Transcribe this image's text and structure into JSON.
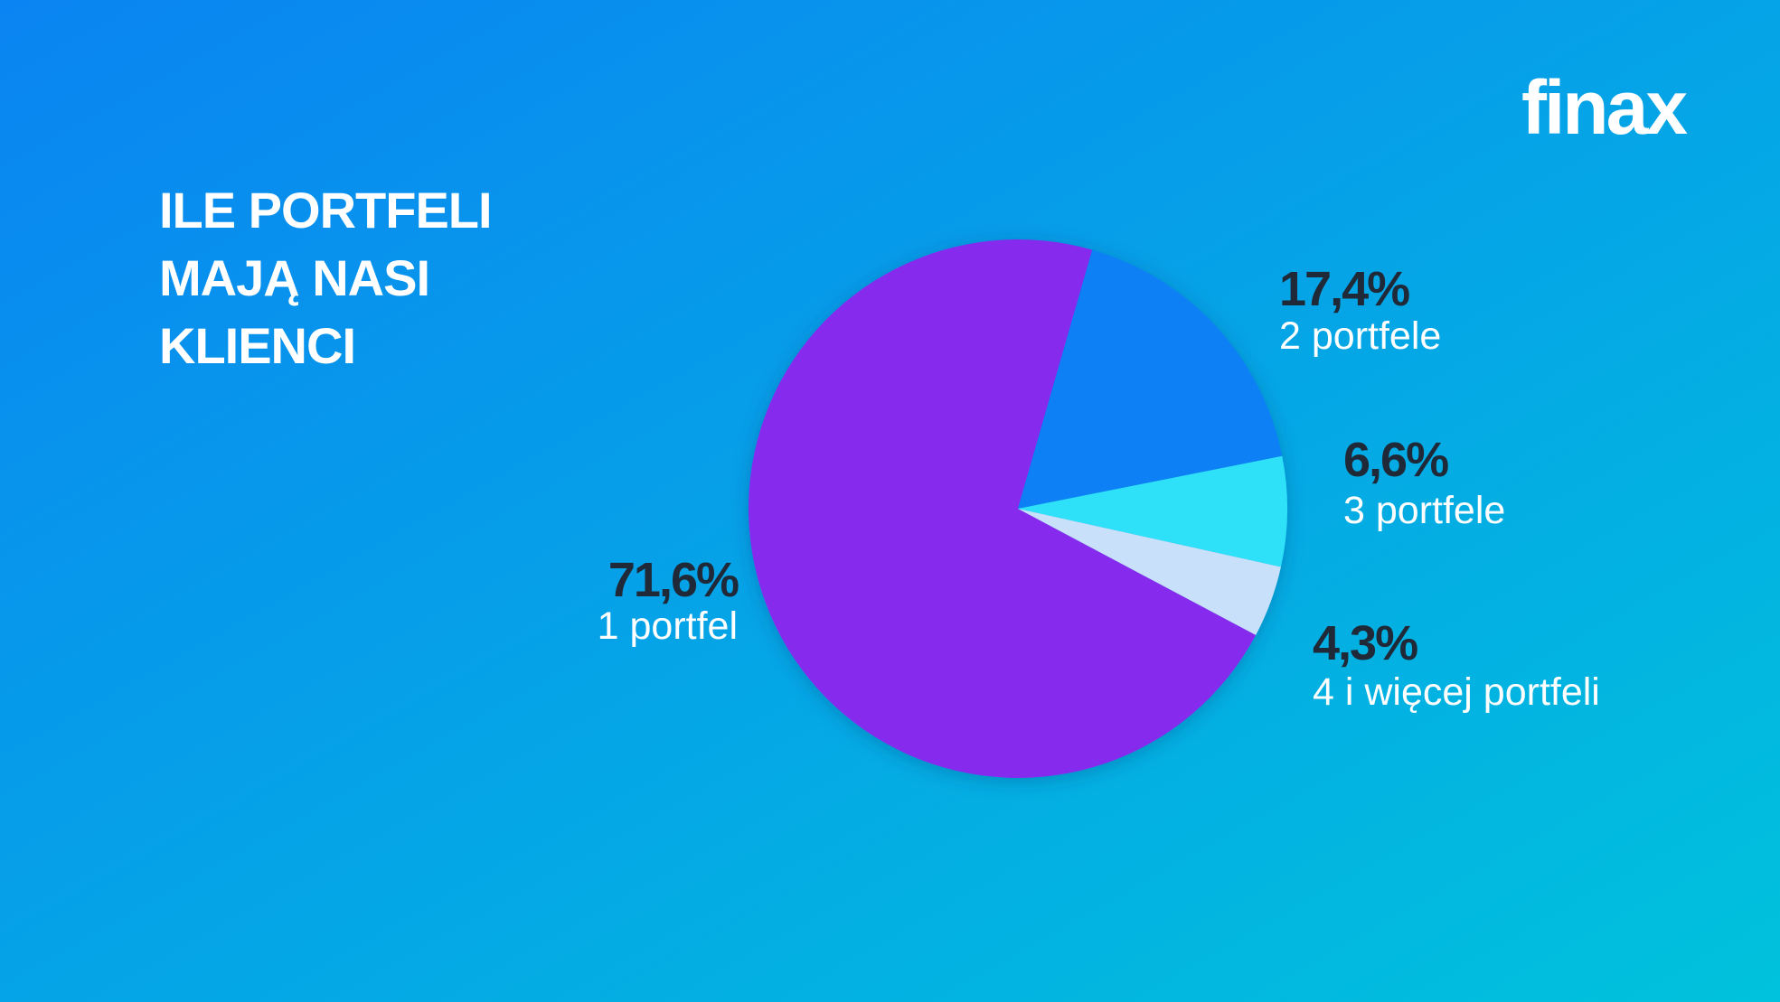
{
  "logo": "finax",
  "chart_data": {
    "type": "pie",
    "title": [
      "ILE PORTFELI",
      "MAJĄ NASI",
      "KLIENCI"
    ],
    "categories": [
      "1 portfel",
      "2 portfele",
      "3 portfele",
      "4 i więcej portfeli"
    ],
    "values": [
      71.6,
      17.4,
      6.6,
      4.3
    ],
    "value_labels": [
      "71,6%",
      "17,4%",
      "6,6%",
      "4,3%"
    ],
    "colors": [
      "#862cee",
      "#0a80f5",
      "#2ee0f8",
      "#c9e0fb"
    ]
  }
}
